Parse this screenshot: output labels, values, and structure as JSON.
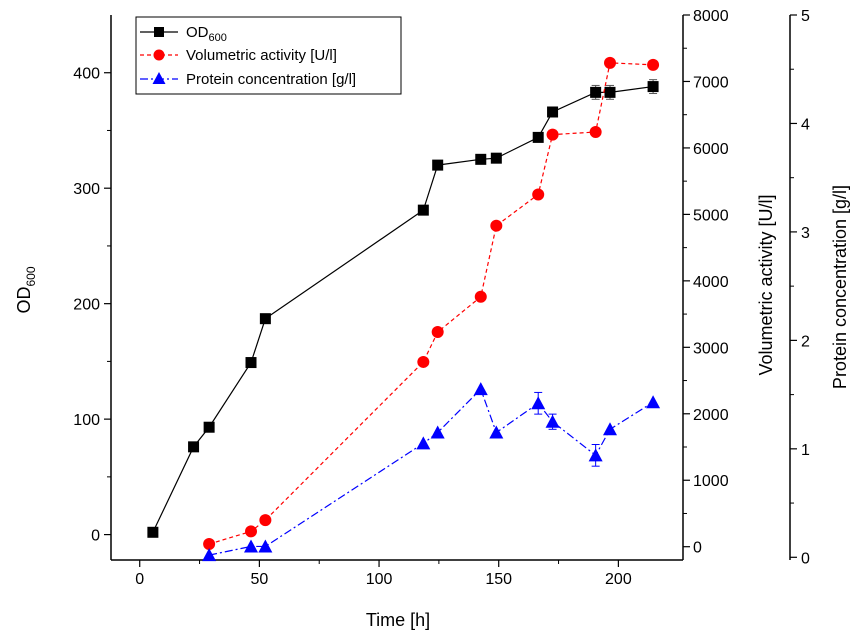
{
  "chart_data": {
    "type": "line",
    "xlabel": "Time [h]",
    "ylabel_left_main": "OD",
    "ylabel_left_sub": "600",
    "ylabel_right1": "Volumetric activity [U/l]",
    "ylabel_right2": "Protein concentration [g/l]",
    "xlim": [
      -12,
      227
    ],
    "xticks": [
      0,
      50,
      100,
      150,
      200
    ],
    "y_left_lim": [
      -22,
      450
    ],
    "y_left_ticks": [
      0,
      100,
      200,
      300,
      400
    ],
    "y_right1_lim": [
      -200,
      8000
    ],
    "y_right1_ticks": [
      0,
      1000,
      2000,
      3000,
      4000,
      5000,
      6000,
      7000,
      8000
    ],
    "y_right2_lim": [
      -0.025,
      5
    ],
    "y_right2_ticks": [
      0,
      1,
      2,
      3,
      4,
      5
    ],
    "legend_position": "top-left",
    "series": [
      {
        "name": "OD",
        "name_sub": "600",
        "axis": "left",
        "color": "#000000",
        "marker": "square",
        "line": "solid",
        "x": [
          5.5,
          22.5,
          29,
          46.5,
          52.5,
          118.5,
          124.5,
          142.5,
          149,
          166.5,
          172.5,
          190.5,
          196.5,
          214.5
        ],
        "y": [
          2,
          76,
          93,
          149,
          187,
          281,
          320,
          325,
          326,
          344,
          366,
          383,
          383,
          388
        ],
        "err": [
          0,
          0,
          0,
          0,
          0,
          4,
          0,
          0,
          0,
          4,
          0,
          6,
          6,
          6
        ]
      },
      {
        "name": "Volumetric activity [U/l]",
        "axis": "right1",
        "color": "#ff0000",
        "marker": "circle",
        "line": "dashed",
        "x": [
          29,
          46.5,
          52.5,
          118.5,
          124.5,
          142.5,
          149,
          166.5,
          172.5,
          190.5,
          196.5,
          214.5
        ],
        "y": [
          40,
          230,
          400,
          2780,
          3230,
          3760,
          4830,
          5300,
          6200,
          6240,
          7280,
          7250
        ]
      },
      {
        "name": "Protein concentration [g/l]",
        "axis": "right2",
        "color": "#0000ff",
        "marker": "triangle",
        "line": "dashdot",
        "x": [
          29,
          46.5,
          52.5,
          118.5,
          124.5,
          142.5,
          149,
          166.5,
          172.5,
          190.5,
          196.5,
          214.5
        ],
        "y": [
          0.02,
          0.1,
          0.1,
          1.05,
          1.15,
          1.55,
          1.15,
          1.42,
          1.25,
          0.94,
          1.18,
          1.43
        ],
        "err": [
          0,
          0,
          0,
          0,
          0,
          0,
          0,
          0.1,
          0.07,
          0.1,
          0,
          0
        ]
      }
    ]
  }
}
